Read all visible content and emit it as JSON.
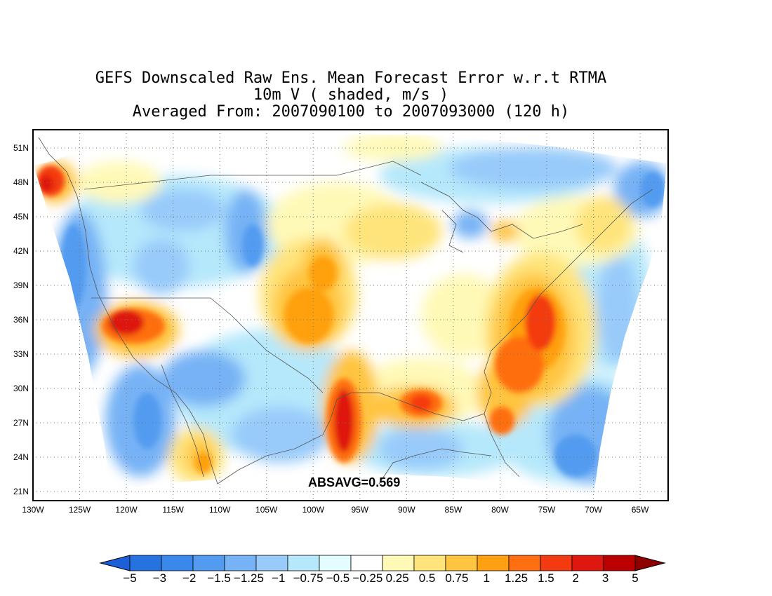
{
  "title": {
    "line1": "GEFS Downscaled Raw Ens. Mean Forecast Error w.r.t RTMA",
    "line2": "10m V ( shaded, m/s )",
    "line3": "Averaged From: 2007090100 to 2007093000 (120 h)"
  },
  "map": {
    "lat_ticks": [
      "51N",
      "48N",
      "45N",
      "42N",
      "39N",
      "36N",
      "33N",
      "30N",
      "27N",
      "24N",
      "21N"
    ],
    "lon_ticks": [
      "130W",
      "125W",
      "120W",
      "115W",
      "110W",
      "105W",
      "100W",
      "95W",
      "90W",
      "85W",
      "80W",
      "75W",
      "70W",
      "65W"
    ],
    "lat_values": [
      51,
      48,
      45,
      42,
      39,
      36,
      33,
      30,
      27,
      24,
      21
    ],
    "lon_values": [
      -130,
      -125,
      -120,
      -115,
      -110,
      -105,
      -100,
      -95,
      -90,
      -85,
      -80,
      -75,
      -70,
      -65
    ],
    "lat_range": [
      20.2,
      52.6
    ],
    "lon_range": [
      -130,
      -62
    ],
    "annotation": "ABSAVG=0.569",
    "grid": true
  },
  "colorbar": {
    "labels": [
      "−5",
      "−3",
      "−2",
      "−1.5",
      "−1.25",
      "−1",
      "−0.75",
      "−0.5",
      "−0.25",
      "0.25",
      "0.5",
      "0.75",
      "1",
      "1.25",
      "1.5",
      "2",
      "3",
      "5"
    ],
    "colors": [
      "#1c5fd6",
      "#2672e0",
      "#3a88ec",
      "#529bf0",
      "#76b2f5",
      "#98cbfa",
      "#b6e8fb",
      "#e2fcff",
      "#ffffff",
      "#fff9b8",
      "#ffe47c",
      "#ffc440",
      "#ffa010",
      "#ff6e10",
      "#f43a10",
      "#de1810",
      "#bc0000",
      "#8e0000"
    ]
  }
}
